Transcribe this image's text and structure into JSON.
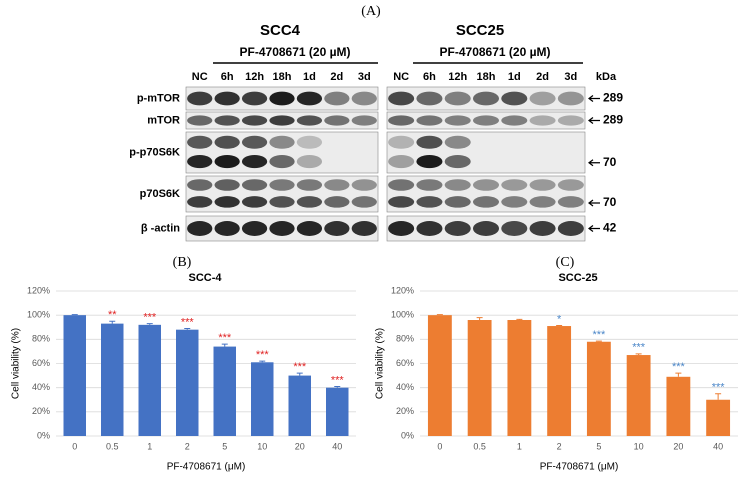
{
  "panels": {
    "a": "(A)",
    "b": "(B)",
    "c": "(C)"
  },
  "blot": {
    "left": {
      "title": "SCC4",
      "treatment": "PF-4708671 (20 µM)",
      "lanes": [
        "NC",
        "6h",
        "12h",
        "18h",
        "1d",
        "2d",
        "3d"
      ]
    },
    "right": {
      "title": "SCC25",
      "treatment": "PF-4708671 (20 µM)",
      "lanes": [
        "NC",
        "6h",
        "12h",
        "18h",
        "1d",
        "2d",
        "3d"
      ]
    },
    "unit": "kDa",
    "proteins": [
      "p-mTOR",
      "mTOR",
      "p-p70S6K",
      "p70S6K",
      "β -actin"
    ],
    "sizes": [
      "289",
      "289",
      "70",
      "70",
      "42"
    ]
  },
  "chart_data": [
    {
      "type": "bar",
      "title": "SCC-4",
      "x_label": "PF-4708671 (μM)",
      "y_label": "Cell viability (%)",
      "categories": [
        "0",
        "0.5",
        "1",
        "2",
        "5",
        "10",
        "20",
        "40"
      ],
      "values": [
        100,
        93,
        92,
        88,
        74,
        61,
        50,
        40
      ],
      "errors": [
        0.5,
        2,
        1,
        1,
        2,
        1,
        2,
        1
      ],
      "significance": [
        null,
        "**",
        "***",
        "***",
        "***",
        "***",
        "***",
        "***"
      ],
      "significance_color": "#e02020",
      "color": "#4472c4",
      "ylim": [
        0,
        120
      ],
      "yticks": [
        {
          "value": 0,
          "label": "0%"
        },
        {
          "value": 20,
          "label": "20%"
        },
        {
          "value": 40,
          "label": "40%"
        },
        {
          "value": 60,
          "label": "60%"
        },
        {
          "value": 80,
          "label": "80%"
        },
        {
          "value": 100,
          "label": "100%"
        },
        {
          "value": 120,
          "label": "120%"
        }
      ],
      "grid": true
    },
    {
      "type": "bar",
      "title": "SCC-25",
      "x_label": "PF-4708671 (μM)",
      "y_label": "Cell viability (%)",
      "categories": [
        "0",
        "0.5",
        "1",
        "2",
        "5",
        "10",
        "20",
        "40"
      ],
      "values": [
        100,
        96,
        96,
        91,
        78,
        67,
        49,
        30
      ],
      "errors": [
        0.5,
        2,
        0.5,
        0.5,
        0.5,
        1,
        3,
        5
      ],
      "significance": [
        null,
        null,
        null,
        "*",
        "***",
        "***",
        "***",
        "***"
      ],
      "significance_color": "#4a86c8",
      "color": "#ed7d31",
      "ylim": [
        0,
        120
      ],
      "yticks": [
        {
          "value": 0,
          "label": "0%"
        },
        {
          "value": 20,
          "label": "20%"
        },
        {
          "value": 40,
          "label": "40%"
        },
        {
          "value": 60,
          "label": "60%"
        },
        {
          "value": 80,
          "label": "80%"
        },
        {
          "value": 100,
          "label": "100%"
        },
        {
          "value": 120,
          "label": "120%"
        }
      ],
      "grid": true
    }
  ]
}
